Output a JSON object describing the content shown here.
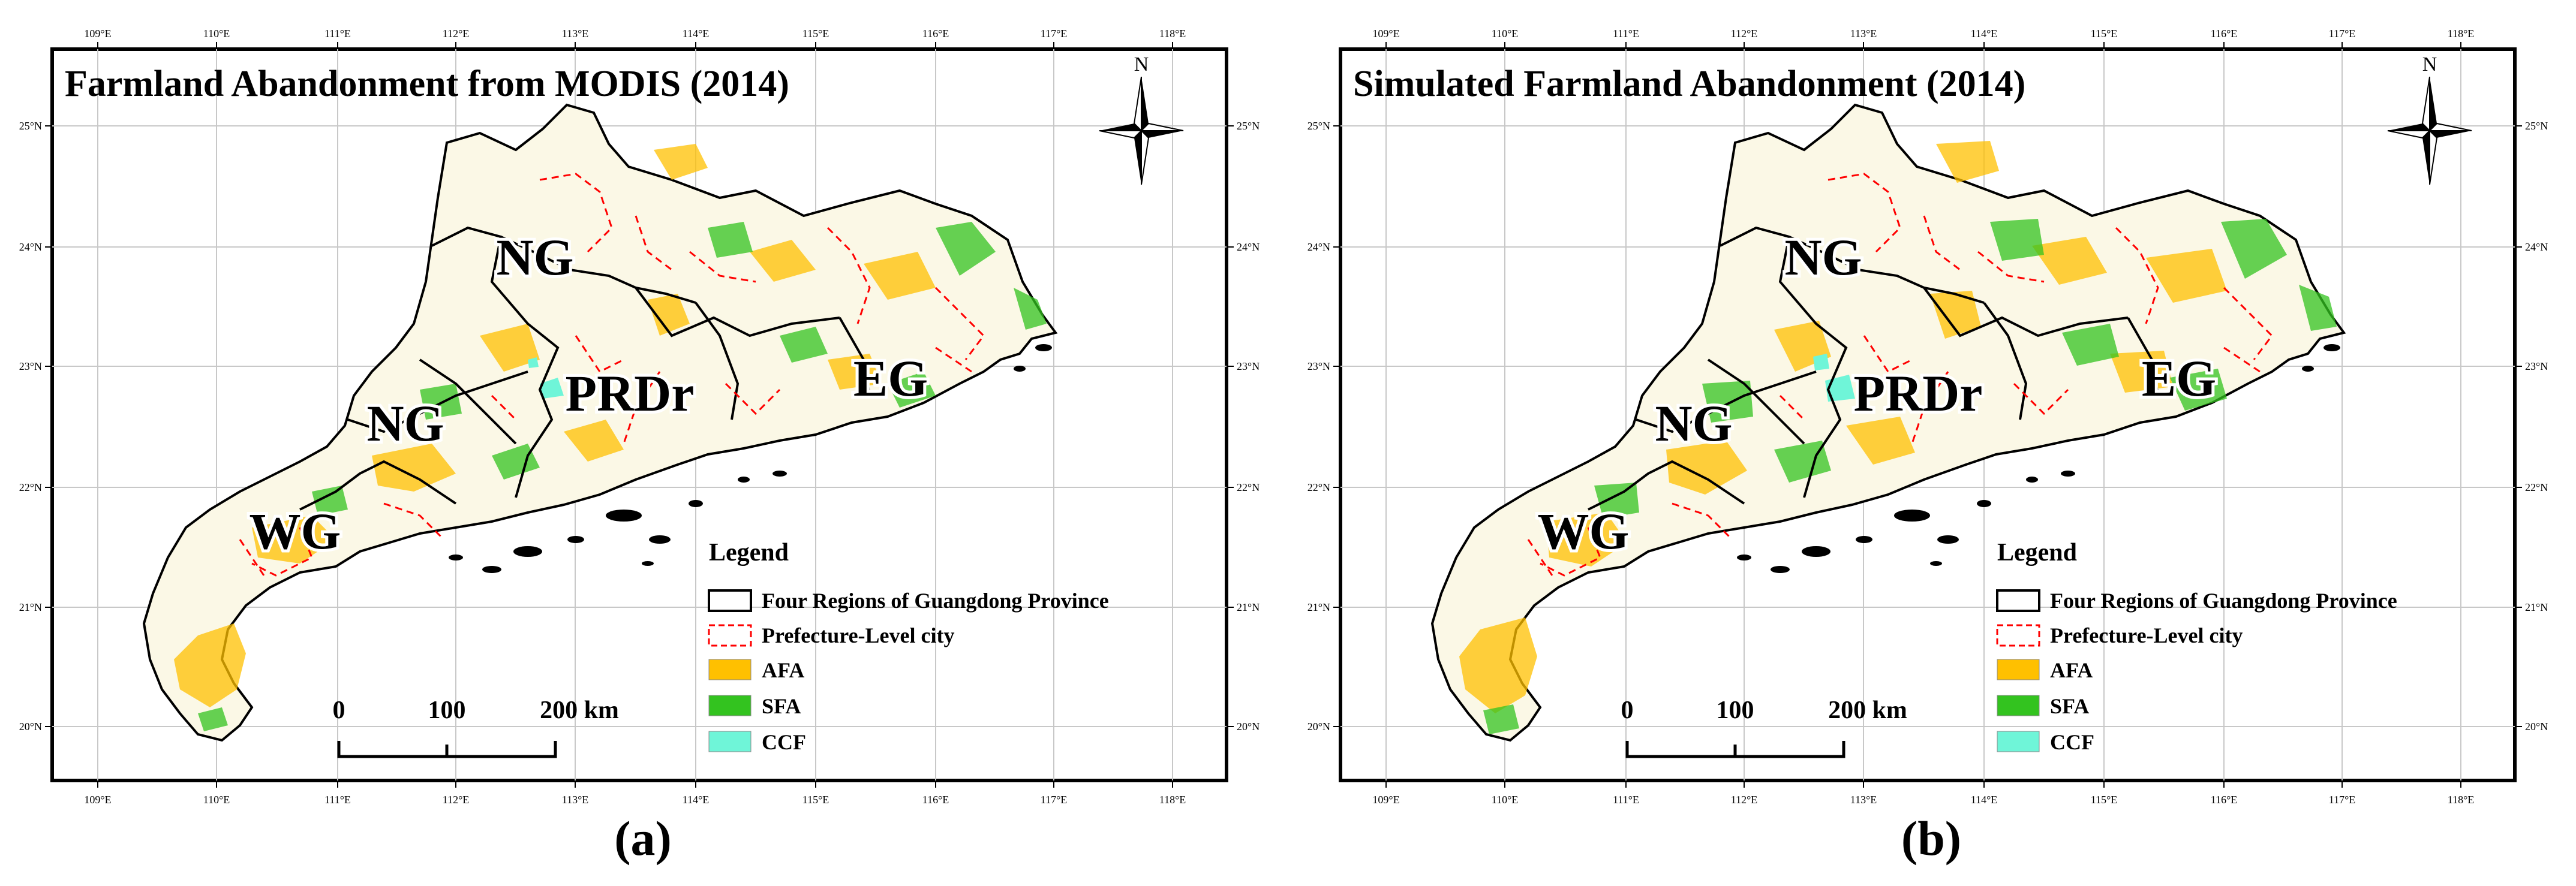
{
  "lon_labels": [
    "109°E",
    "110°E",
    "111°E",
    "112°E",
    "113°E",
    "114°E",
    "115°E",
    "116°E",
    "117°E",
    "118°E"
  ],
  "lat_labels": [
    "25°N",
    "24°N",
    "23°N",
    "22°N",
    "21°N",
    "20°N"
  ],
  "colors": {
    "afa": "#ffc000",
    "sfa": "#33c31f",
    "ccf": "#6ff5d8",
    "region_border": "#000000",
    "city_border": "#ff0000"
  },
  "panels": [
    {
      "title": "Farmland Abandonment from MODIS (2014)",
      "caption": "(a)",
      "regions": [
        "NG",
        "NG",
        "PRDr",
        "EG",
        "WG"
      ],
      "legend": {
        "title": "Legend",
        "items": [
          "Four Regions of Guangdong Province",
          "Prefecture-Level city",
          "AFA",
          "SFA",
          "CCF"
        ]
      },
      "scale": [
        "0",
        "100",
        "200 km"
      ],
      "north": "N"
    },
    {
      "title": "Simulated Farmland Abandonment (2014)",
      "caption": "(b)",
      "regions": [
        "NG",
        "NG",
        "PRDr",
        "EG",
        "WG"
      ],
      "legend": {
        "title": "Legend",
        "items": [
          "Four Regions of Guangdong Province",
          "Prefecture-Level city",
          "AFA",
          "SFA",
          "CCF"
        ]
      },
      "scale": [
        "0",
        "100",
        "200 km"
      ],
      "north": "N"
    }
  ]
}
